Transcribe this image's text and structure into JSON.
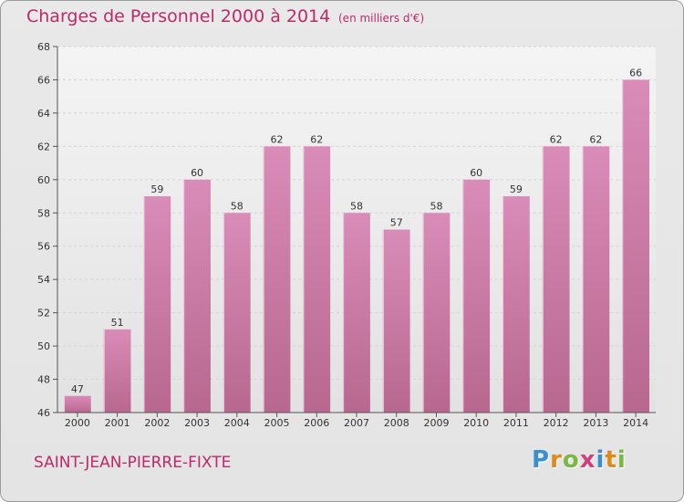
{
  "header": {
    "title": "Charges de Personnel 2000 à 2014",
    "subtitle": "(en milliers d'€)"
  },
  "footer": {
    "commune": "SAINT-JEAN-PIERRE-FIXTE",
    "logo_letters": [
      "P",
      "r",
      "o",
      "x",
      "i",
      "t",
      "i"
    ]
  },
  "chart_data": {
    "type": "bar",
    "categories": [
      "2000",
      "2001",
      "2002",
      "2003",
      "2004",
      "2005",
      "2006",
      "2007",
      "2008",
      "2009",
      "2010",
      "2011",
      "2012",
      "2013",
      "2014"
    ],
    "values": [
      47,
      51,
      59,
      60,
      58,
      62,
      62,
      58,
      57,
      58,
      60,
      59,
      62,
      62,
      66
    ],
    "ylim": [
      46,
      68
    ],
    "yticks": [
      46,
      48,
      50,
      52,
      54,
      56,
      58,
      60,
      62,
      64,
      66,
      68
    ],
    "grid": true,
    "bar_color": "#d98cb8",
    "bar_color_dark": "#b8688f"
  },
  "colors": {
    "accent": "#c0286a",
    "logo": [
      "#3a8fd1",
      "#e0891b",
      "#7ab842",
      "#d23f7b",
      "#3a8fd1",
      "#e0891b",
      "#7ab842"
    ]
  }
}
